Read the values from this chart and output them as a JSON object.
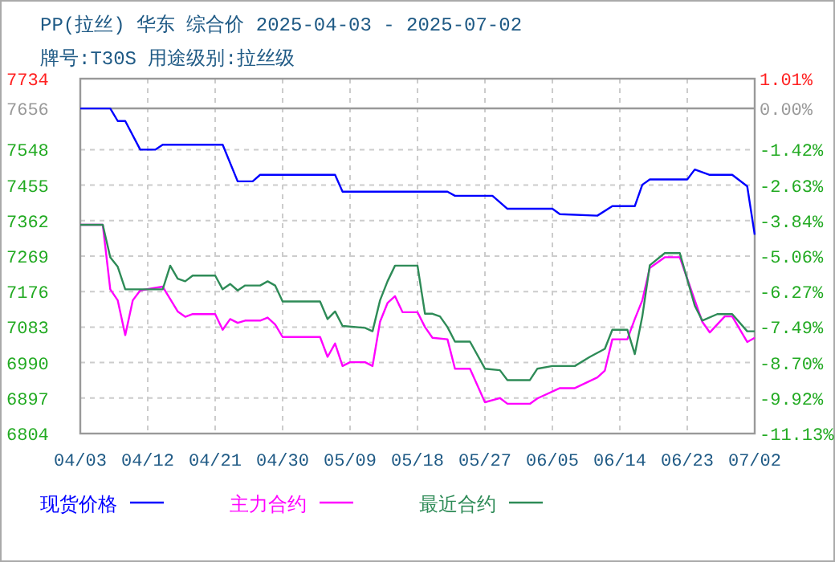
{
  "chart_data": {
    "type": "line",
    "title": "PP(拉丝) 华东 综合价 2025-04-03 - 2025-07-02",
    "subtitle": "牌号:T30S 用途级别:拉丝级",
    "xlim": [
      "2025-04-03",
      "2025-07-02"
    ],
    "xticks": [
      {
        "value": "2025-04-03",
        "label": "04/03"
      },
      {
        "value": "2025-04-12",
        "label": "04/12"
      },
      {
        "value": "2025-04-21",
        "label": "04/21"
      },
      {
        "value": "2025-04-30",
        "label": "04/30"
      },
      {
        "value": "2025-05-09",
        "label": "05/09"
      },
      {
        "value": "2025-05-18",
        "label": "05/18"
      },
      {
        "value": "2025-05-27",
        "label": "05/27"
      },
      {
        "value": "2025-06-05",
        "label": "06/05"
      },
      {
        "value": "2025-06-14",
        "label": "06/14"
      },
      {
        "value": "2025-06-23",
        "label": "06/23"
      },
      {
        "value": "2025-07-02",
        "label": "07/02"
      }
    ],
    "ylim": [
      6804,
      7734
    ],
    "yticks": [
      7734,
      7656,
      7548,
      7455,
      7362,
      7269,
      7176,
      7083,
      6990,
      6897,
      6804
    ],
    "y2lim": [
      -11.13,
      1.01
    ],
    "y2ticks": [
      {
        "value": 1.01,
        "label": "1.01%"
      },
      {
        "value": 0,
        "label": "0.00%"
      },
      {
        "value": -1.42,
        "label": "-1.42%"
      },
      {
        "value": -2.63,
        "label": "-2.63%"
      },
      {
        "value": -3.84,
        "label": "-3.84%"
      },
      {
        "value": -5.06,
        "label": "-5.06%"
      },
      {
        "value": -6.27,
        "label": "-6.27%"
      },
      {
        "value": -7.49,
        "label": "-7.49%"
      },
      {
        "value": -8.7,
        "label": "-8.70%"
      },
      {
        "value": -9.92,
        "label": "-9.92%"
      },
      {
        "value": -11.13,
        "label": "-11.13%"
      }
    ],
    "ref_lines": [
      {
        "axis": "y",
        "value": 7656,
        "color": "#999999"
      }
    ],
    "grid": true,
    "legend": "bottom",
    "line_style": "solid",
    "marker": "none",
    "series": [
      {
        "name": "现货价格",
        "color": "#0000ff",
        "x": [
          "2025-04-03",
          "2025-04-07",
          "2025-04-08",
          "2025-04-09",
          "2025-04-11",
          "2025-04-13",
          "2025-04-14",
          "2025-04-22",
          "2025-04-24",
          "2025-04-26",
          "2025-04-27",
          "2025-05-07",
          "2025-05-08",
          "2025-05-22",
          "2025-05-23",
          "2025-05-28",
          "2025-05-30",
          "2025-06-05",
          "2025-06-06",
          "2025-06-11",
          "2025-06-13",
          "2025-06-16",
          "2025-06-17",
          "2025-06-18",
          "2025-06-23",
          "2025-06-24",
          "2025-06-26",
          "2025-06-29",
          "2025-07-01",
          "2025-07-02"
        ],
        "values": [
          7656,
          7656,
          7623,
          7623,
          7548,
          7548,
          7561,
          7561,
          7465,
          7465,
          7482,
          7482,
          7438,
          7438,
          7427,
          7427,
          7393,
          7393,
          7379,
          7375,
          7400,
          7400,
          7456,
          7470,
          7470,
          7496,
          7482,
          7482,
          7452,
          7325
        ]
      },
      {
        "name": "主力合约",
        "color": "#ff00ff",
        "x": [
          "2025-04-03",
          "2025-04-06",
          "2025-04-07",
          "2025-04-08",
          "2025-04-09",
          "2025-04-10",
          "2025-04-11",
          "2025-04-14",
          "2025-04-16",
          "2025-04-17",
          "2025-04-18",
          "2025-04-21",
          "2025-04-22",
          "2025-04-23",
          "2025-04-24",
          "2025-04-25",
          "2025-04-27",
          "2025-04-28",
          "2025-04-29",
          "2025-04-30",
          "2025-05-05",
          "2025-05-06",
          "2025-05-07",
          "2025-05-08",
          "2025-05-09",
          "2025-05-11",
          "2025-05-12",
          "2025-05-13",
          "2025-05-14",
          "2025-05-15",
          "2025-05-16",
          "2025-05-18",
          "2025-05-19",
          "2025-05-20",
          "2025-05-22",
          "2025-05-23",
          "2025-05-25",
          "2025-05-27",
          "2025-05-29",
          "2025-05-30",
          "2025-06-02",
          "2025-06-03",
          "2025-06-06",
          "2025-06-08",
          "2025-06-11",
          "2025-06-12",
          "2025-06-13",
          "2025-06-15",
          "2025-06-16",
          "2025-06-17",
          "2025-06-18",
          "2025-06-20",
          "2025-06-22",
          "2025-06-23",
          "2025-06-25",
          "2025-06-26",
          "2025-06-27",
          "2025-06-28",
          "2025-06-29",
          "2025-07-01",
          "2025-07-02"
        ],
        "values": [
          7351,
          7351,
          7182,
          7153,
          7062,
          7153,
          7179,
          7189,
          7124,
          7110,
          7117,
          7117,
          7076,
          7104,
          7094,
          7100,
          7100,
          7108,
          7090,
          7057,
          7057,
          7005,
          7040,
          6981,
          6991,
          6991,
          6981,
          7097,
          7146,
          7164,
          7122,
          7122,
          7083,
          7055,
          7051,
          6974,
          6974,
          6886,
          6897,
          6882,
          6882,
          6896,
          6923,
          6923,
          6951,
          6969,
          7051,
          7051,
          7104,
          7153,
          7238,
          7266,
          7266,
          7210,
          7097,
          7069,
          7090,
          7111,
          7111,
          7044,
          7055
        ]
      },
      {
        "name": "最近合约",
        "color": "#2e8b57",
        "x": [
          "2025-04-03",
          "2025-04-06",
          "2025-04-07",
          "2025-04-08",
          "2025-04-09",
          "2025-04-14",
          "2025-04-15",
          "2025-04-16",
          "2025-04-17",
          "2025-04-18",
          "2025-04-21",
          "2025-04-22",
          "2025-04-23",
          "2025-04-24",
          "2025-04-25",
          "2025-04-27",
          "2025-04-28",
          "2025-04-29",
          "2025-04-30",
          "2025-05-05",
          "2025-05-06",
          "2025-05-07",
          "2025-05-08",
          "2025-05-11",
          "2025-05-12",
          "2025-05-13",
          "2025-05-14",
          "2025-05-15",
          "2025-05-18",
          "2025-05-19",
          "2025-05-20",
          "2025-05-21",
          "2025-05-22",
          "2025-05-23",
          "2025-05-25",
          "2025-05-27",
          "2025-05-29",
          "2025-05-30",
          "2025-06-02",
          "2025-06-03",
          "2025-06-05",
          "2025-06-08",
          "2025-06-10",
          "2025-06-12",
          "2025-06-13",
          "2025-06-15",
          "2025-06-16",
          "2025-06-17",
          "2025-06-18",
          "2025-06-20",
          "2025-06-22",
          "2025-06-24",
          "2025-06-25",
          "2025-06-27",
          "2025-06-29",
          "2025-07-01",
          "2025-07-02"
        ],
        "values": [
          7351,
          7351,
          7266,
          7241,
          7182,
          7182,
          7244,
          7210,
          7203,
          7218,
          7218,
          7182,
          7196,
          7179,
          7192,
          7192,
          7203,
          7192,
          7150,
          7150,
          7104,
          7124,
          7086,
          7081,
          7072,
          7153,
          7203,
          7244,
          7244,
          7118,
          7118,
          7111,
          7083,
          7045,
          7045,
          6974,
          6970,
          6944,
          6944,
          6974,
          6981,
          6981,
          7005,
          7026,
          7076,
          7076,
          7012,
          7111,
          7245,
          7277,
          7277,
          7139,
          7100,
          7117,
          7117,
          7072,
          7072
        ]
      }
    ]
  }
}
